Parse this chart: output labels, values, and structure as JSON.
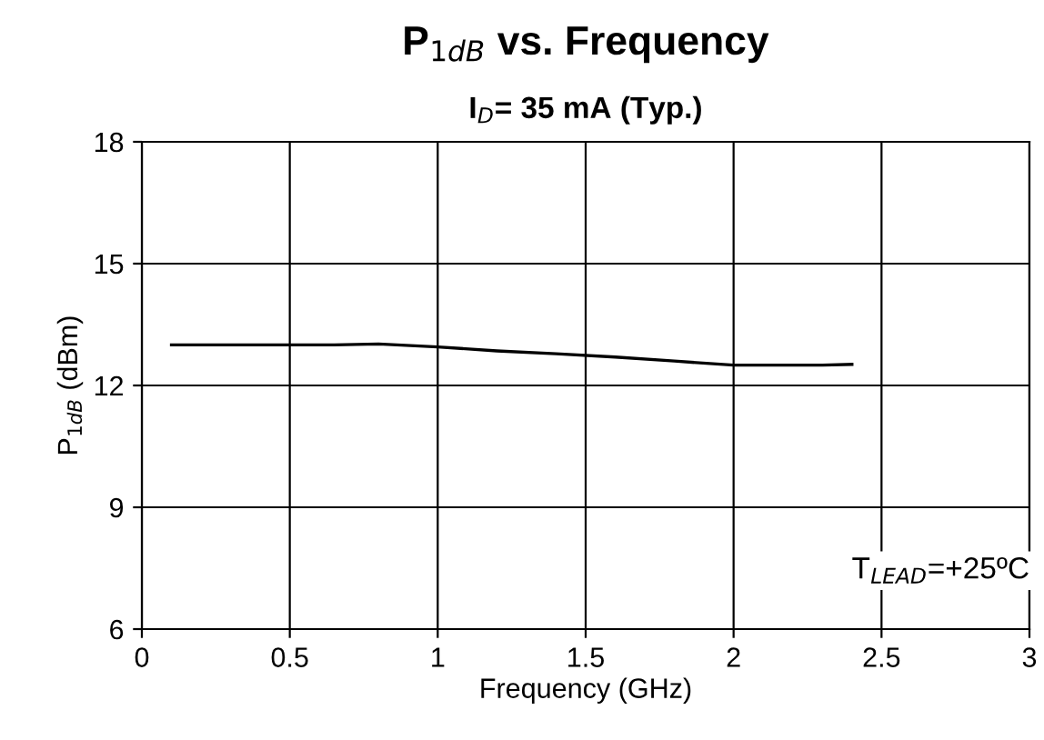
{
  "chart_data": {
    "type": "line",
    "title": "P$_{1dB}$ vs. Frequency",
    "subtitle": "I$_{D}$= 35 mA (Typ.)",
    "xlabel": "Frequency (GHz)",
    "ylabel": "P$_{1dB}$ (dBm)",
    "x": [
      0.1,
      0.3,
      0.5,
      0.65,
      0.8,
      1.0,
      1.2,
      1.4,
      1.6,
      1.8,
      2.0,
      2.1,
      2.3,
      2.4
    ],
    "series": [
      {
        "color": "#000000",
        "values": [
          13.0,
          13.0,
          13.0,
          13.0,
          13.02,
          12.95,
          12.85,
          12.78,
          12.7,
          12.6,
          12.5,
          12.5,
          12.5,
          12.52
        ]
      }
    ],
    "annotations": [
      "T$_{LEAD}$=+25ºC"
    ],
    "xlim": [
      0,
      3
    ],
    "xticks": [
      0,
      0.5,
      1,
      1.5,
      2,
      2.5,
      3
    ],
    "ylim": [
      6,
      18
    ],
    "yticks": [
      6,
      9,
      12,
      15,
      18
    ],
    "grid": true,
    "marker": "none",
    "line_style": "solid"
  }
}
